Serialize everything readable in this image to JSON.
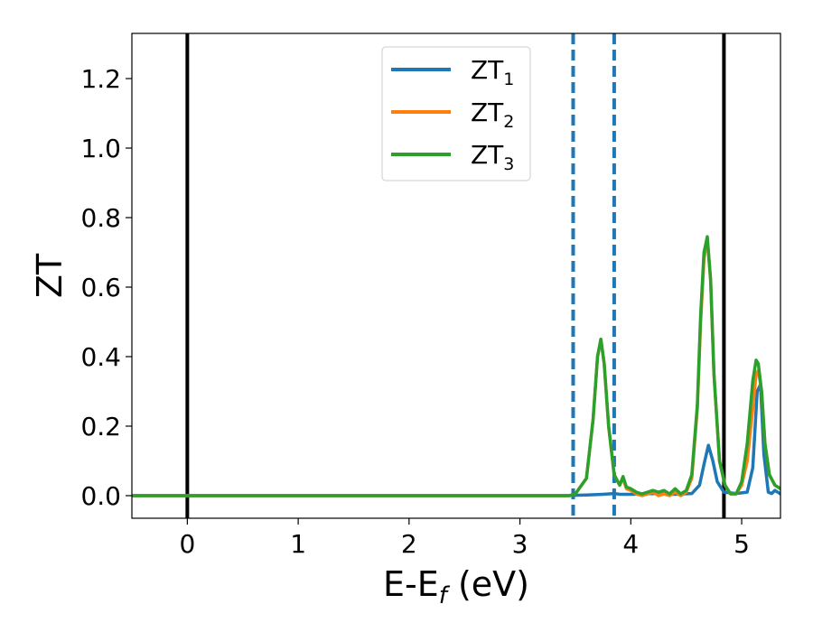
{
  "chart_data": {
    "type": "line",
    "xlabel": "E-E",
    "xlabel_subscript": "f",
    "xlabel_unit": " (eV)",
    "ylabel": "ZT",
    "xlim": [
      -0.5,
      5.35
    ],
    "ylim": [
      -0.065,
      1.33
    ],
    "x_ticks": [
      0,
      1,
      2,
      3,
      4,
      5
    ],
    "x_tick_labels": [
      "0",
      "1",
      "2",
      "3",
      "4",
      "5"
    ],
    "y_ticks": [
      0.0,
      0.2,
      0.4,
      0.6,
      0.8,
      1.0,
      1.2
    ],
    "y_tick_labels": [
      "0.0",
      "0.2",
      "0.4",
      "0.6",
      "0.8",
      "1.0",
      "1.2"
    ],
    "grid": false,
    "legend_position": "top-center",
    "vertical_lines": [
      {
        "x": 0.0,
        "style": "solid",
        "color": "#000000"
      },
      {
        "x": 4.84,
        "style": "solid",
        "color": "#000000"
      },
      {
        "x": 3.48,
        "style": "dashed",
        "color": "#1f77b4"
      },
      {
        "x": 3.85,
        "style": "dashed",
        "color": "#1f77b4"
      }
    ],
    "series": [
      {
        "name": "ZT",
        "name_subscript": "1",
        "color": "#1f77b4",
        "x": [
          -0.5,
          3.4,
          3.6,
          3.75,
          3.85,
          3.9,
          4.0,
          4.2,
          4.4,
          4.55,
          4.62,
          4.66,
          4.7,
          4.74,
          4.78,
          4.84,
          4.95,
          5.05,
          5.1,
          5.14,
          5.17,
          5.2,
          5.24,
          5.27,
          5.3,
          5.35
        ],
        "y": [
          0.0,
          0.0,
          0.002,
          0.004,
          0.006,
          0.004,
          0.004,
          0.006,
          0.004,
          0.006,
          0.03,
          0.09,
          0.145,
          0.1,
          0.04,
          0.01,
          0.006,
          0.01,
          0.08,
          0.3,
          0.32,
          0.12,
          0.01,
          0.006,
          0.015,
          0.005
        ]
      },
      {
        "name": "ZT",
        "name_subscript": "2",
        "color": "#ff7f0e",
        "x": [
          -0.5,
          3.45,
          3.5,
          3.6,
          3.66,
          3.7,
          3.73,
          3.76,
          3.8,
          3.85,
          3.9,
          3.93,
          3.96,
          4.0,
          4.05,
          4.1,
          4.15,
          4.2,
          4.25,
          4.3,
          4.35,
          4.4,
          4.45,
          4.5,
          4.55,
          4.6,
          4.63,
          4.66,
          4.69,
          4.72,
          4.75,
          4.8,
          4.85,
          4.9,
          4.95,
          5.0,
          5.05,
          5.1,
          5.13,
          5.15,
          5.18,
          5.21,
          5.25,
          5.3,
          5.35
        ],
        "y": [
          0.0,
          0.0,
          0.005,
          0.05,
          0.22,
          0.4,
          0.45,
          0.38,
          0.2,
          0.06,
          0.03,
          0.05,
          0.02,
          0.015,
          0.005,
          0.0,
          0.005,
          0.01,
          0.0,
          0.005,
          0.0,
          0.01,
          0.0,
          0.01,
          0.05,
          0.25,
          0.5,
          0.68,
          0.74,
          0.62,
          0.35,
          0.1,
          0.03,
          0.005,
          0.005,
          0.03,
          0.1,
          0.25,
          0.35,
          0.36,
          0.3,
          0.15,
          0.06,
          0.03,
          0.02
        ]
      },
      {
        "name": "ZT",
        "name_subscript": "3",
        "color": "#2ca02c",
        "x": [
          -0.5,
          3.45,
          3.5,
          3.6,
          3.66,
          3.7,
          3.73,
          3.76,
          3.8,
          3.85,
          3.9,
          3.93,
          3.96,
          4.0,
          4.05,
          4.1,
          4.15,
          4.2,
          4.25,
          4.3,
          4.35,
          4.4,
          4.45,
          4.5,
          4.55,
          4.6,
          4.63,
          4.66,
          4.69,
          4.72,
          4.75,
          4.8,
          4.85,
          4.9,
          4.95,
          5.0,
          5.05,
          5.1,
          5.13,
          5.15,
          5.18,
          5.21,
          5.25,
          5.3,
          5.35
        ],
        "y": [
          0.0,
          0.0,
          0.005,
          0.05,
          0.22,
          0.4,
          0.45,
          0.38,
          0.2,
          0.06,
          0.03,
          0.055,
          0.025,
          0.02,
          0.01,
          0.005,
          0.01,
          0.015,
          0.01,
          0.015,
          0.005,
          0.02,
          0.005,
          0.015,
          0.06,
          0.26,
          0.52,
          0.7,
          0.745,
          0.62,
          0.35,
          0.1,
          0.03,
          0.005,
          0.005,
          0.04,
          0.15,
          0.33,
          0.39,
          0.38,
          0.3,
          0.15,
          0.06,
          0.03,
          0.02
        ]
      }
    ]
  }
}
